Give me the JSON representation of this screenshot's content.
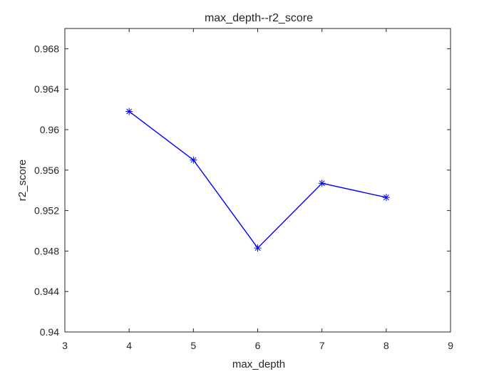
{
  "chart_data": {
    "type": "line",
    "title": "max_depth--r2_score",
    "xlabel": "max_depth",
    "ylabel": "r2_score",
    "xlim": [
      3,
      9
    ],
    "ylim": [
      0.94,
      0.97
    ],
    "xticks": [
      3,
      4,
      5,
      6,
      7,
      8,
      9
    ],
    "xtick_labels": [
      "3",
      "4",
      "5",
      "6",
      "7",
      "8",
      "9"
    ],
    "yticks": [
      0.94,
      0.944,
      0.948,
      0.952,
      0.956,
      0.96,
      0.964,
      0.968
    ],
    "ytick_labels": [
      "0.94",
      "0.944",
      "0.948",
      "0.952",
      "0.956",
      "0.96",
      "0.964",
      "0.968"
    ],
    "grid": false,
    "line_color": "#0000ff",
    "marker": "asterisk",
    "x": [
      4,
      5,
      6,
      7,
      8
    ],
    "series": [
      {
        "values": [
          0.9618,
          0.957,
          0.9483,
          0.9547,
          0.9533
        ]
      }
    ]
  }
}
